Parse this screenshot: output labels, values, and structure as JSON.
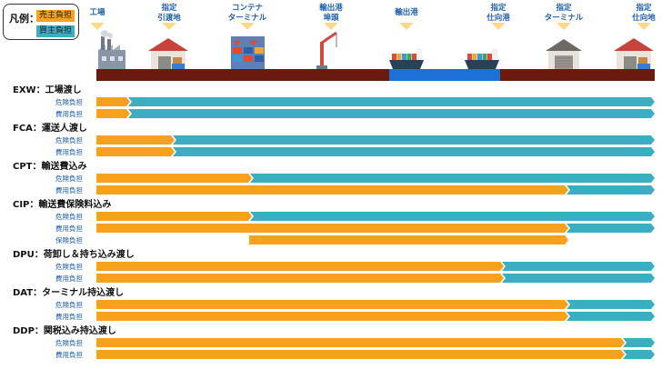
{
  "legend": {
    "title": "凡例：",
    "seller": "売主負担",
    "buyer": "買主負担"
  },
  "colors": {
    "seller": "#F7A11C",
    "buyer": "#3AAFC2",
    "ground": "#6B1A0E",
    "sea": "#1E6FD6",
    "header_text": "#1F5FA8",
    "label_text": "#1F5FA8",
    "term_text": "#111111"
  },
  "locations": [
    {
      "id": "factory",
      "label": [
        "工場"
      ],
      "icon": "factory-icon"
    },
    {
      "id": "delivery",
      "label": [
        "指定",
        "引渡地"
      ],
      "icon": "warehouse-icon"
    },
    {
      "id": "container",
      "label": [
        "コンテナ",
        "ターミナル"
      ],
      "icon": "container-terminal-icon"
    },
    {
      "id": "export_wharf",
      "label": [
        "輸出港",
        "埠頭"
      ],
      "icon": "crane-icon"
    },
    {
      "id": "export_port",
      "label": [
        "輸出港"
      ],
      "icon": "ship-icon"
    },
    {
      "id": "dest_port",
      "label": [
        "指定",
        "仕向港"
      ],
      "icon": "ship-icon"
    },
    {
      "id": "terminal",
      "label": [
        "指定",
        "ターミナル"
      ],
      "icon": "warehouse-icon"
    },
    {
      "id": "dest",
      "label": [
        "指定",
        "仕向地"
      ],
      "icon": "warehouse-icon"
    }
  ],
  "terms": [
    {
      "code": "EXW",
      "title": "EXW：工場渡し",
      "rows": [
        {
          "label": "危険負担",
          "seller_to": "factory"
        },
        {
          "label": "費用負担",
          "seller_to": "factory"
        }
      ]
    },
    {
      "code": "FCA",
      "title": "FCA：運送人渡し",
      "rows": [
        {
          "label": "危険負担",
          "seller_to": "delivery"
        },
        {
          "label": "費用負担",
          "seller_to": "delivery"
        }
      ]
    },
    {
      "code": "CPT",
      "title": "CPT：輸送費込み",
      "rows": [
        {
          "label": "危険負担",
          "seller_to": "container"
        },
        {
          "label": "費用負担",
          "seller_to": "terminal"
        }
      ]
    },
    {
      "code": "CIP",
      "title": "CIP：輸送費保険料込み",
      "rows": [
        {
          "label": "危険負担",
          "seller_to": "container"
        },
        {
          "label": "費用負担",
          "seller_to": "terminal"
        },
        {
          "label": "保険負担",
          "insurance_from": "container",
          "insurance_to": "terminal"
        }
      ]
    },
    {
      "code": "DPU",
      "title": "DPU：荷卸し＆持ち込み渡し",
      "rows": [
        {
          "label": "危険負担",
          "seller_to": "dest_port"
        },
        {
          "label": "費用負担",
          "seller_to": "dest_port"
        }
      ]
    },
    {
      "code": "DAT",
      "title": "DAT：ターミナル持込渡し",
      "rows": [
        {
          "label": "危険負担",
          "seller_to": "terminal"
        },
        {
          "label": "費用負担",
          "seller_to": "terminal"
        }
      ]
    },
    {
      "code": "DDP",
      "title": "DDP：関税込み持込渡し",
      "rows": [
        {
          "label": "危険負担",
          "seller_to": "dest"
        },
        {
          "label": "費用負担",
          "seller_to": "dest"
        }
      ]
    }
  ]
}
